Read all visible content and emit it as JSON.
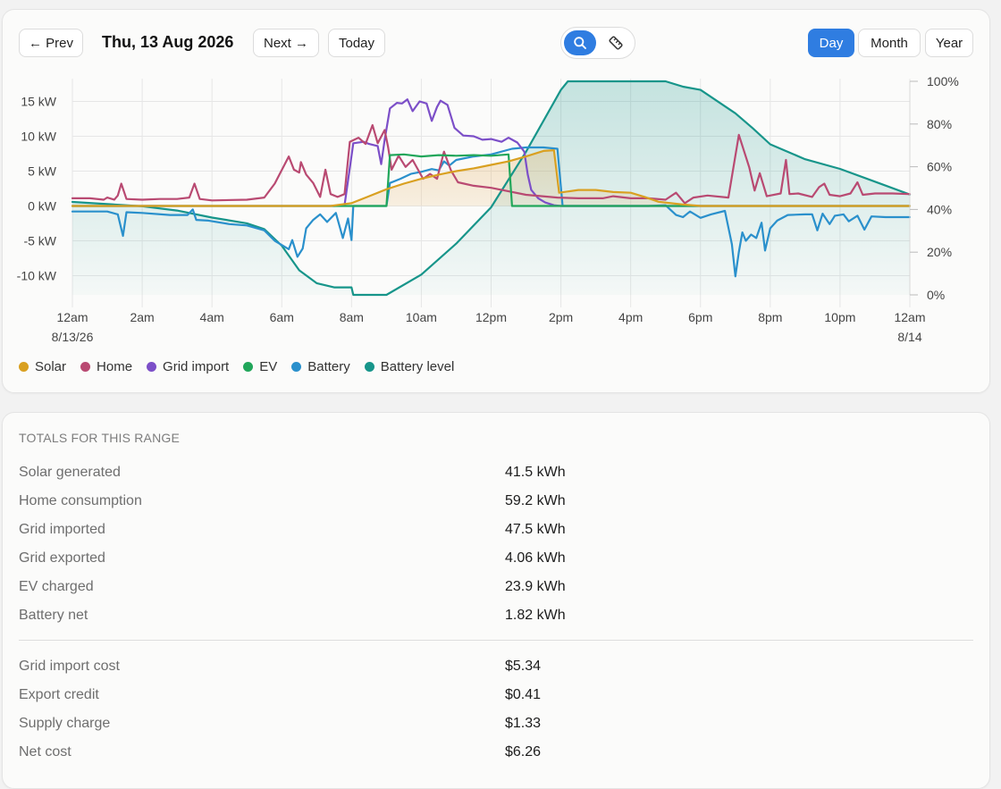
{
  "toolbar": {
    "prev_label": "← Prev",
    "date_title": "Thu, 13 Aug 2026",
    "next_label": "Next →",
    "today_label": "Today",
    "ranges": [
      "Day",
      "Month",
      "Year"
    ],
    "active_range": "Day",
    "tool_icons": [
      "search-icon",
      "ruler-icon"
    ],
    "active_tool": "search-icon",
    "accent_color": "#2f7de1"
  },
  "chart_data": {
    "type": "line",
    "x_ticks": [
      "12am",
      "2am",
      "4am",
      "6am",
      "8am",
      "10am",
      "12pm",
      "2pm",
      "4pm",
      "6pm",
      "8pm",
      "10pm",
      "12am"
    ],
    "x_subticks": {
      "first": "8/13/26",
      "last": "8/14"
    },
    "xlim_hours": [
      0,
      24
    ],
    "y_left": {
      "ticks": [
        "15 kW",
        "10 kW",
        "5 kW",
        "0 kW",
        "-5 kW",
        "-10 kW"
      ],
      "values": [
        15,
        10,
        5,
        0,
        -5,
        -10
      ],
      "ylim": [
        -12.8,
        18
      ]
    },
    "y_right": {
      "ticks": [
        "100%",
        "80%",
        "60%",
        "40%",
        "20%",
        "0%"
      ],
      "values": [
        100,
        80,
        60,
        40,
        20,
        0
      ],
      "ylim": [
        0,
        100
      ]
    },
    "grid": true,
    "legend_position": "bottom-left",
    "series": [
      {
        "name": "Solar",
        "color": "#d9a021",
        "axis": "kW",
        "fill": true,
        "points": [
          [
            0,
            0
          ],
          [
            7.4,
            0
          ],
          [
            8.0,
            0.4
          ],
          [
            8.5,
            1.4
          ],
          [
            9.0,
            2.4
          ],
          [
            9.5,
            3.2
          ],
          [
            10.0,
            3.9
          ],
          [
            10.5,
            4.5
          ],
          [
            11.0,
            5.0
          ],
          [
            11.5,
            5.4
          ],
          [
            12.0,
            5.9
          ],
          [
            12.5,
            6.4
          ],
          [
            13.0,
            7.1
          ],
          [
            13.5,
            7.9
          ],
          [
            13.8,
            8.0
          ],
          [
            13.95,
            1.9
          ],
          [
            14.5,
            2.3
          ],
          [
            15.0,
            2.3
          ],
          [
            15.5,
            2.0
          ],
          [
            16.0,
            1.9
          ],
          [
            16.4,
            1.3
          ],
          [
            16.8,
            0.6
          ],
          [
            17.5,
            0.2
          ],
          [
            18.0,
            0
          ],
          [
            24,
            0
          ]
        ]
      },
      {
        "name": "Home",
        "color": "#b94a72",
        "axis": "kW",
        "points": [
          [
            0,
            1.1
          ],
          [
            0.5,
            1.1
          ],
          [
            0.9,
            0.9
          ],
          [
            1.0,
            1.2
          ],
          [
            1.2,
            0.9
          ],
          [
            1.3,
            1.5
          ],
          [
            1.4,
            3.2
          ],
          [
            1.55,
            1.0
          ],
          [
            2.0,
            0.9
          ],
          [
            2.5,
            1.0
          ],
          [
            3.0,
            1.0
          ],
          [
            3.35,
            1.2
          ],
          [
            3.5,
            3.2
          ],
          [
            3.65,
            1.0
          ],
          [
            4.0,
            0.8
          ],
          [
            5.0,
            0.9
          ],
          [
            5.5,
            1.2
          ],
          [
            5.8,
            3.2
          ],
          [
            6.2,
            7.1
          ],
          [
            6.35,
            5.2
          ],
          [
            6.5,
            4.8
          ],
          [
            6.55,
            6.3
          ],
          [
            6.7,
            4.5
          ],
          [
            6.9,
            3.3
          ],
          [
            7.1,
            1.3
          ],
          [
            7.25,
            5.2
          ],
          [
            7.4,
            1.7
          ],
          [
            7.6,
            1.3
          ],
          [
            7.8,
            1.7
          ],
          [
            7.95,
            9.2
          ],
          [
            8.2,
            9.8
          ],
          [
            8.4,
            8.9
          ],
          [
            8.6,
            11.6
          ],
          [
            8.75,
            9.0
          ],
          [
            8.95,
            10.9
          ],
          [
            9.05,
            8.4
          ],
          [
            9.15,
            5.2
          ],
          [
            9.35,
            7.2
          ],
          [
            9.55,
            5.6
          ],
          [
            9.75,
            6.6
          ],
          [
            10.05,
            3.9
          ],
          [
            10.25,
            4.6
          ],
          [
            10.45,
            3.9
          ],
          [
            10.65,
            7.8
          ],
          [
            10.85,
            5.1
          ],
          [
            11.05,
            3.4
          ],
          [
            11.5,
            2.9
          ],
          [
            12.0,
            2.6
          ],
          [
            12.5,
            2.1
          ],
          [
            13.0,
            1.6
          ],
          [
            13.9,
            1.2
          ],
          [
            14.5,
            1.1
          ],
          [
            15.2,
            1.1
          ],
          [
            15.5,
            1.4
          ],
          [
            16.0,
            1.1
          ],
          [
            16.5,
            1.1
          ],
          [
            17.0,
            0.9
          ],
          [
            17.3,
            1.9
          ],
          [
            17.55,
            0.4
          ],
          [
            17.8,
            1.2
          ],
          [
            18.2,
            1.5
          ],
          [
            18.8,
            1.2
          ],
          [
            19.1,
            10.2
          ],
          [
            19.4,
            5.5
          ],
          [
            19.55,
            2.2
          ],
          [
            19.7,
            4.7
          ],
          [
            19.9,
            1.4
          ],
          [
            20.3,
            1.8
          ],
          [
            20.45,
            6.6
          ],
          [
            20.55,
            1.7
          ],
          [
            20.8,
            1.8
          ],
          [
            21.2,
            1.3
          ],
          [
            21.4,
            2.7
          ],
          [
            21.55,
            3.2
          ],
          [
            21.7,
            1.6
          ],
          [
            22.0,
            1.4
          ],
          [
            22.3,
            1.8
          ],
          [
            22.5,
            3.4
          ],
          [
            22.65,
            1.6
          ],
          [
            23.0,
            1.8
          ],
          [
            23.5,
            1.8
          ],
          [
            24.0,
            1.7
          ]
        ]
      },
      {
        "name": "Grid import",
        "color": "#7c4fc8",
        "axis": "kW",
        "points": [
          [
            0,
            0
          ],
          [
            7.5,
            0
          ],
          [
            7.8,
            0.1
          ],
          [
            8.05,
            9.0
          ],
          [
            8.35,
            9.2
          ],
          [
            8.5,
            8.9
          ],
          [
            8.75,
            8.6
          ],
          [
            8.85,
            6.0
          ],
          [
            8.95,
            9.5
          ],
          [
            9.1,
            14.0
          ],
          [
            9.3,
            14.8
          ],
          [
            9.45,
            14.7
          ],
          [
            9.6,
            15.3
          ],
          [
            9.75,
            13.6
          ],
          [
            9.95,
            15.0
          ],
          [
            10.15,
            14.7
          ],
          [
            10.3,
            12.2
          ],
          [
            10.45,
            14.2
          ],
          [
            10.55,
            15.1
          ],
          [
            10.75,
            14.5
          ],
          [
            10.95,
            11.2
          ],
          [
            11.2,
            10.1
          ],
          [
            11.5,
            10.0
          ],
          [
            11.75,
            9.5
          ],
          [
            12.0,
            9.6
          ],
          [
            12.3,
            9.2
          ],
          [
            12.5,
            9.8
          ],
          [
            12.75,
            9.1
          ],
          [
            12.95,
            7.8
          ],
          [
            13.05,
            4.5
          ],
          [
            13.15,
            2.3
          ],
          [
            13.35,
            1.1
          ],
          [
            13.55,
            0.5
          ],
          [
            13.8,
            0.1
          ],
          [
            14.0,
            0
          ],
          [
            24,
            0
          ]
        ]
      },
      {
        "name": "EV",
        "color": "#21a65a",
        "axis": "kW",
        "points": [
          [
            0,
            0
          ],
          [
            9.0,
            0
          ],
          [
            9.1,
            7.3
          ],
          [
            9.5,
            7.4
          ],
          [
            10.0,
            7.1
          ],
          [
            10.5,
            7.3
          ],
          [
            11.0,
            7.2
          ],
          [
            11.5,
            7.3
          ],
          [
            12.0,
            7.2
          ],
          [
            12.5,
            7.4
          ],
          [
            12.6,
            0
          ],
          [
            24,
            0
          ]
        ]
      },
      {
        "name": "Battery",
        "color": "#2a90cc",
        "axis": "kW",
        "points": [
          [
            0,
            -0.8
          ],
          [
            1.0,
            -0.8
          ],
          [
            1.3,
            -1.2
          ],
          [
            1.45,
            -4.3
          ],
          [
            1.55,
            -0.9
          ],
          [
            2.0,
            -1.0
          ],
          [
            2.8,
            -1.3
          ],
          [
            3.3,
            -1.3
          ],
          [
            3.45,
            -0.5
          ],
          [
            3.55,
            -2.0
          ],
          [
            3.9,
            -2.1
          ],
          [
            4.5,
            -2.6
          ],
          [
            5.0,
            -2.8
          ],
          [
            5.5,
            -3.5
          ],
          [
            5.8,
            -5.0
          ],
          [
            6.0,
            -5.6
          ],
          [
            6.2,
            -6.2
          ],
          [
            6.3,
            -4.9
          ],
          [
            6.45,
            -7.3
          ],
          [
            6.6,
            -6.1
          ],
          [
            6.7,
            -3.2
          ],
          [
            6.9,
            -2.0
          ],
          [
            7.1,
            -1.2
          ],
          [
            7.3,
            -2.3
          ],
          [
            7.55,
            -1.0
          ],
          [
            7.75,
            -4.6
          ],
          [
            7.9,
            -1.8
          ],
          [
            8.0,
            -4.9
          ],
          [
            8.05,
            0
          ],
          [
            9.0,
            0
          ],
          [
            9.1,
            3.3
          ],
          [
            9.4,
            3.9
          ],
          [
            9.7,
            4.6
          ],
          [
            10.0,
            4.9
          ],
          [
            10.3,
            5.3
          ],
          [
            10.5,
            5.1
          ],
          [
            10.65,
            6.4
          ],
          [
            10.8,
            5.8
          ],
          [
            11.0,
            6.6
          ],
          [
            11.5,
            7.1
          ],
          [
            12.0,
            7.4
          ],
          [
            12.6,
            8.2
          ],
          [
            13.0,
            8.4
          ],
          [
            13.5,
            8.4
          ],
          [
            13.9,
            8.2
          ],
          [
            14.05,
            0
          ],
          [
            16.5,
            0
          ],
          [
            17.0,
            0.1
          ],
          [
            17.3,
            -1.3
          ],
          [
            17.5,
            -1.6
          ],
          [
            17.7,
            -0.8
          ],
          [
            18.0,
            -1.7
          ],
          [
            18.3,
            -1.2
          ],
          [
            18.7,
            -0.7
          ],
          [
            18.9,
            -5.5
          ],
          [
            19.0,
            -10.1
          ],
          [
            19.1,
            -6.6
          ],
          [
            19.2,
            -3.8
          ],
          [
            19.3,
            -5.0
          ],
          [
            19.45,
            -4.1
          ],
          [
            19.6,
            -4.6
          ],
          [
            19.75,
            -2.4
          ],
          [
            19.85,
            -6.4
          ],
          [
            20.0,
            -3.2
          ],
          [
            20.2,
            -2.1
          ],
          [
            20.5,
            -1.3
          ],
          [
            21.0,
            -1.2
          ],
          [
            21.2,
            -1.2
          ],
          [
            21.35,
            -3.5
          ],
          [
            21.5,
            -1.1
          ],
          [
            21.7,
            -2.6
          ],
          [
            21.85,
            -1.4
          ],
          [
            22.1,
            -1.2
          ],
          [
            22.25,
            -2.2
          ],
          [
            22.5,
            -1.4
          ],
          [
            22.7,
            -3.4
          ],
          [
            22.9,
            -1.5
          ],
          [
            23.3,
            -1.6
          ],
          [
            24.0,
            -1.6
          ]
        ]
      },
      {
        "name": "Battery level",
        "color": "#17958a",
        "axis": "%",
        "fill": true,
        "points": [
          [
            0,
            43.5
          ],
          [
            1.0,
            42.5
          ],
          [
            2.0,
            41.5
          ],
          [
            3.0,
            39.5
          ],
          [
            4.0,
            36.2
          ],
          [
            5.0,
            33.5
          ],
          [
            5.5,
            30.8
          ],
          [
            6.0,
            23.0
          ],
          [
            6.5,
            11.5
          ],
          [
            7.0,
            5.5
          ],
          [
            7.5,
            3.5
          ],
          [
            8.0,
            3.5
          ],
          [
            8.05,
            0
          ],
          [
            9.0,
            0
          ],
          [
            10.0,
            9.5
          ],
          [
            11.0,
            24.0
          ],
          [
            12.0,
            41.0
          ],
          [
            13.0,
            67.0
          ],
          [
            14.0,
            96.0
          ],
          [
            14.2,
            100
          ],
          [
            17.0,
            100
          ],
          [
            17.5,
            97.5
          ],
          [
            18.0,
            96.0
          ],
          [
            18.5,
            90.5
          ],
          [
            19.0,
            85.0
          ],
          [
            19.5,
            78.0
          ],
          [
            20.0,
            70.5
          ],
          [
            21.0,
            63.5
          ],
          [
            22.0,
            59.0
          ],
          [
            23.0,
            53.0
          ],
          [
            24.0,
            47.0
          ]
        ]
      }
    ]
  },
  "totals": {
    "heading": "TOTALS FOR THIS RANGE",
    "rows": [
      {
        "label": "Solar generated",
        "value": "41.5 kWh"
      },
      {
        "label": "Home consumption",
        "value": "59.2 kWh"
      },
      {
        "label": "Grid imported",
        "value": "47.5 kWh"
      },
      {
        "label": "Grid exported",
        "value": "4.06 kWh"
      },
      {
        "label": "EV charged",
        "value": "23.9 kWh"
      },
      {
        "label": "Battery net",
        "value": "1.82 kWh"
      }
    ],
    "cost_rows": [
      {
        "label": "Grid import cost",
        "value": "$5.34"
      },
      {
        "label": "Export credit",
        "value": "$0.41"
      },
      {
        "label": "Supply charge",
        "value": "$1.33"
      },
      {
        "label": "Net cost",
        "value": "$6.26"
      }
    ]
  }
}
